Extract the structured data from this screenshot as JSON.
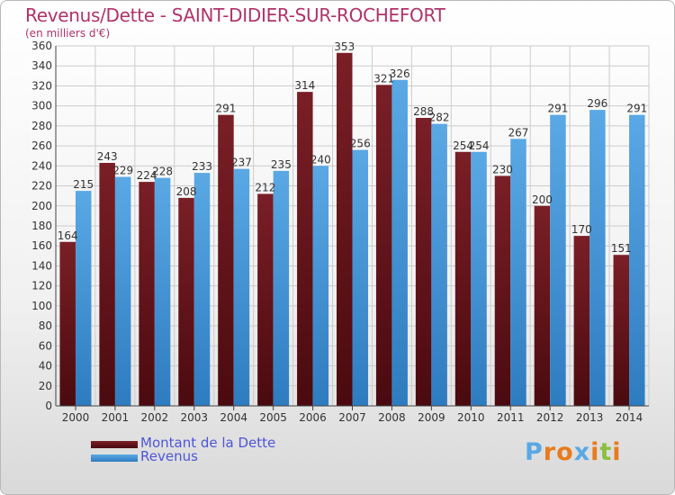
{
  "header": {
    "title": "Revenus/Dette - SAINT-DIDIER-SUR-ROCHEFORT",
    "subtitle": "(en milliers d'€)"
  },
  "colors": {
    "dette": "#7a1f26",
    "dette_dark": "#4a0a0f",
    "revenus": "#5aa8e4",
    "revenus_dark": "#2e7cc0",
    "grid": "#cccccc",
    "title": "#b0336a",
    "legend_text": "#4f55d8"
  },
  "chart_data": {
    "type": "bar",
    "title": "Revenus/Dette - SAINT-DIDIER-SUR-ROCHEFORT",
    "subtitle": "(en milliers d'€)",
    "categories": [
      "2000",
      "2001",
      "2002",
      "2003",
      "2004",
      "2005",
      "2006",
      "2007",
      "2008",
      "2009",
      "2010",
      "2011",
      "2012",
      "2013",
      "2014"
    ],
    "series": [
      {
        "name": "Montant de la Dette",
        "values": [
          164,
          243,
          224,
          208,
          291,
          212,
          314,
          353,
          321,
          288,
          254,
          230,
          200,
          170,
          151
        ]
      },
      {
        "name": "Revenus",
        "values": [
          215,
          229,
          228,
          233,
          237,
          235,
          240,
          256,
          326,
          282,
          254,
          267,
          291,
          296,
          291
        ]
      }
    ],
    "value_labels_dette": [
      "164",
      "243",
      "224",
      "208",
      "291",
      "212",
      "314",
      "353",
      "321",
      "288",
      "254",
      "230",
      "200",
      "170",
      "151"
    ],
    "value_labels_revenus": [
      "215",
      "229",
      "228",
      "233",
      "237",
      "235",
      "240",
      "256",
      "326",
      "282",
      "254",
      "267",
      "291",
      "296",
      "291"
    ],
    "ylim": [
      0,
      360
    ],
    "yticks": [
      0,
      20,
      40,
      60,
      80,
      100,
      120,
      140,
      160,
      180,
      200,
      220,
      240,
      260,
      280,
      300,
      320,
      340,
      360
    ],
    "ytick_labels": [
      "0",
      "20",
      "40",
      "60",
      "80",
      "100",
      "120",
      "140",
      "160",
      "180",
      "200",
      "220",
      "240",
      "260",
      "280",
      "300",
      "320",
      "340",
      "360"
    ],
    "grid": true,
    "legend": "bottom-left"
  },
  "legend": {
    "items": [
      {
        "label": "Montant de la Dette"
      },
      {
        "label": "Revenus"
      }
    ]
  },
  "logo": {
    "letters": [
      "P",
      "r",
      "o",
      "x",
      "i",
      "t",
      "i"
    ],
    "colors": [
      "#5aa8e4",
      "#e87b1e",
      "#e87b1e",
      "#5aa8e4",
      "#e87b1e",
      "#8cbf3f",
      "#e87b1e"
    ]
  }
}
